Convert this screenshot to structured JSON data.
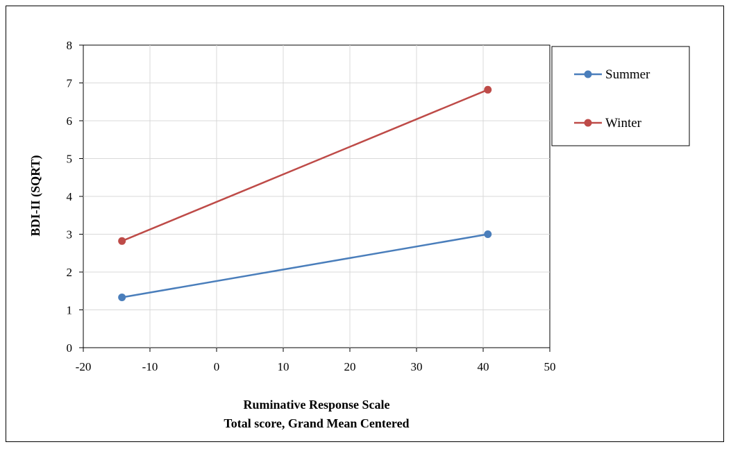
{
  "chart_data": {
    "type": "line",
    "title": "",
    "xlabel_lines": [
      "Ruminative Response Scale",
      "Total score, Grand Mean Centered"
    ],
    "ylabel": "BDI-II (SQRT)",
    "xlim": [
      -20,
      50
    ],
    "ylim": [
      0,
      8
    ],
    "x_ticks": [
      -20,
      -10,
      0,
      10,
      20,
      30,
      40,
      50
    ],
    "y_ticks": [
      0,
      1,
      2,
      3,
      4,
      5,
      6,
      7,
      8
    ],
    "grid": true,
    "legend_position": "right",
    "series": [
      {
        "name": "Summer",
        "color": "#4a7ebb",
        "x": [
          -14.2,
          40.7
        ],
        "y": [
          1.33,
          3.0
        ]
      },
      {
        "name": "Winter",
        "color": "#be4b48",
        "x": [
          -14.2,
          40.7
        ],
        "y": [
          2.82,
          6.82
        ]
      }
    ]
  }
}
